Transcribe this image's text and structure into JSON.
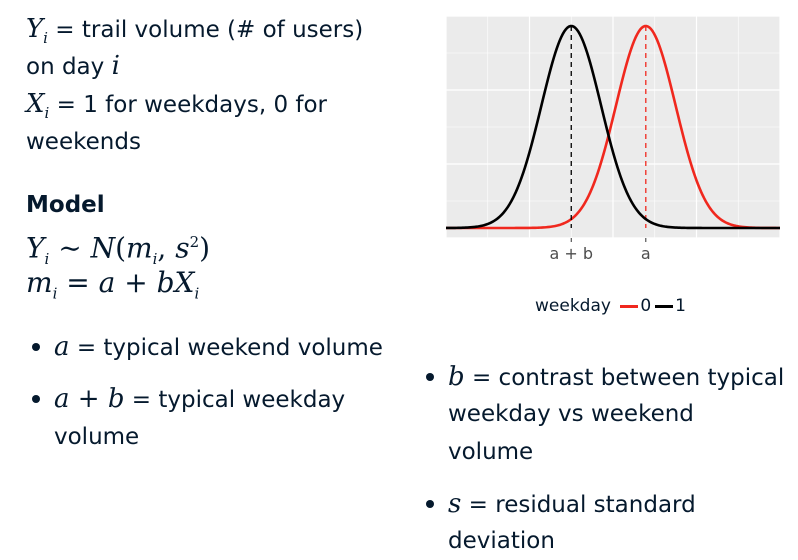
{
  "definitions": {
    "y_symbol": "Y",
    "y_sub": "i",
    "y_text_1": " = trail volume (# of users)",
    "y_text_2": "on day ",
    "y_day_var": "i",
    "x_symbol": "X",
    "x_sub": "i",
    "x_text_1": " = 1 for weekdays, 0 for",
    "x_text_2": "weekends"
  },
  "model": {
    "heading": "Model",
    "formula_1": "Y_i ~ N(m_i, s^2)",
    "formula_2": "m_i = a + bX_i"
  },
  "bullets_left": [
    {
      "symbol": "a",
      "text": " = typical weekend volume"
    },
    {
      "symbol": "a + b",
      "text_1": " = typical weekday",
      "text_2": "volume"
    }
  ],
  "bullets_right": [
    {
      "symbol": "b",
      "text_1": " = contrast between typical",
      "text_2": "weekday vs weekend",
      "text_3": "volume"
    },
    {
      "symbol": "s",
      "text_1": " = residual standard",
      "text_2": "deviation"
    }
  ],
  "chart_data": {
    "type": "line",
    "title": "",
    "xlabel": "",
    "ylabel": "",
    "tick_labels": [
      {
        "label": "a + b",
        "x": 0
      },
      {
        "label": "a",
        "x": 1.25
      }
    ],
    "xlim": [
      -2.1,
      3.5
    ],
    "ylim": [
      0,
      1
    ],
    "series": [
      {
        "name": "0",
        "color": "#f0281e",
        "mean": 1.25,
        "sd": 0.5
      },
      {
        "name": "1",
        "color": "#000000",
        "mean": 0,
        "sd": 0.5
      }
    ],
    "grid": true,
    "legend": {
      "title": "weekday",
      "position": "bottom",
      "entries": [
        "0",
        "1"
      ]
    }
  },
  "colors": {
    "text": "#05192d",
    "panel": "#ebebeb",
    "weekend": "#f0281e",
    "weekday": "#000000"
  }
}
